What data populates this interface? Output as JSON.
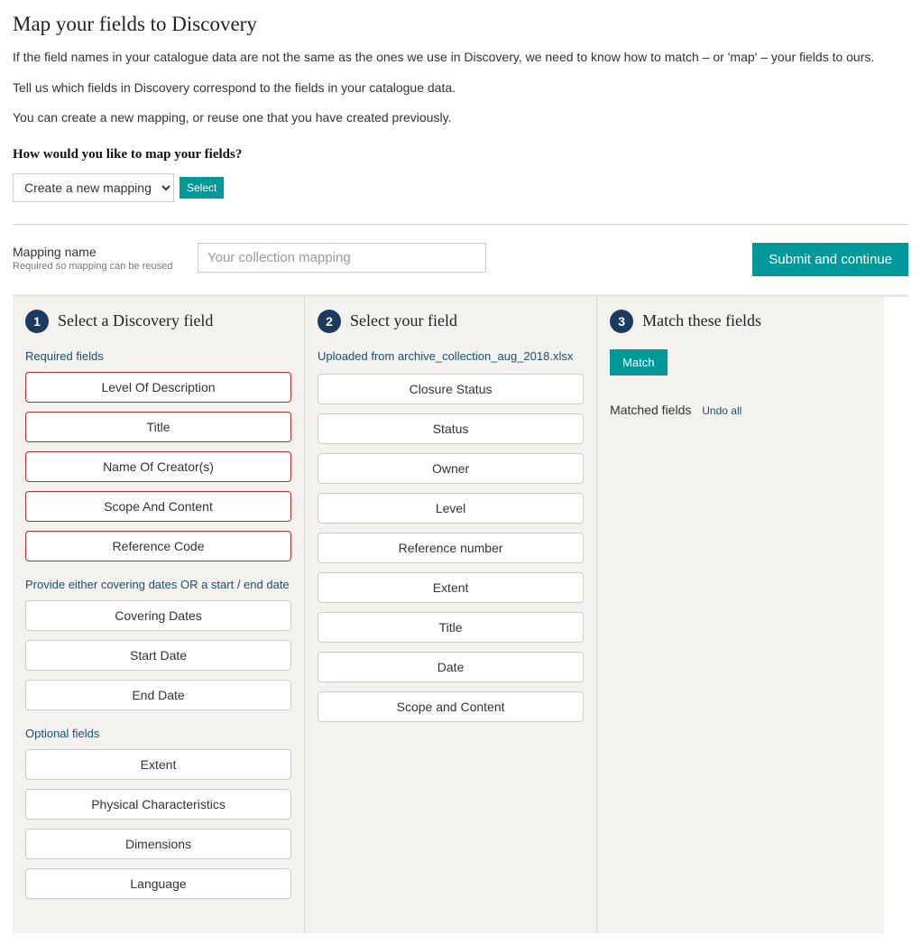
{
  "colors": {
    "accent_teal": "#009999",
    "step_circle_bg": "#1b3a5f",
    "section_label": "#1b4f72",
    "required_border": "#b03030",
    "column_bg": "#f3f2ef",
    "column_top_border": "#e7e7e5",
    "divider": "#d8d8d6"
  },
  "page_title": "Map your fields to Discovery",
  "intro_paragraphs": [
    "If the field names in your catalogue data are not the same as the ones we use in Discovery, we need to know how to match – or 'map' – your fields to ours.",
    "Tell us which fields in Discovery correspond to the fields in your catalogue data.",
    "You can create a new mapping, or reuse one that you have created previously."
  ],
  "how_question": "How would you like to map your fields?",
  "mapping_dropdown": {
    "selected": "Create a new mapping",
    "select_button": "Select"
  },
  "mapping_name": {
    "label": "Mapping name",
    "hint": "Required so mapping can be reused",
    "placeholder": "Your collection mapping"
  },
  "submit_button": "Submit and continue",
  "steps": {
    "one": {
      "number": "1",
      "title": "Select a Discovery field"
    },
    "two": {
      "number": "2",
      "title": "Select your field"
    },
    "three": {
      "number": "3",
      "title": "Match these fields"
    }
  },
  "discovery_fields": {
    "required_label": "Required fields",
    "required": [
      "Level Of Description",
      "Title",
      "Name Of Creator(s)",
      "Scope And Content",
      "Reference Code"
    ],
    "date_label": "Provide either covering dates OR a start / end date",
    "date_fields": [
      "Covering Dates",
      "Start Date",
      "End Date"
    ],
    "optional_label": "Optional fields",
    "optional": [
      "Extent",
      "Physical Characteristics",
      "Dimensions",
      "Language"
    ]
  },
  "your_fields": {
    "uploaded_prefix": "Uploaded from ",
    "uploaded_file": "archive_collection_aug_2018.xlsx",
    "fields": [
      "Closure Status",
      "Status",
      "Owner",
      "Level",
      "Reference number",
      "Extent",
      "Title",
      "Date",
      "Scope and Content"
    ]
  },
  "match": {
    "button": "Match",
    "matched_label": "Matched fields",
    "undo_all": "Undo all"
  }
}
